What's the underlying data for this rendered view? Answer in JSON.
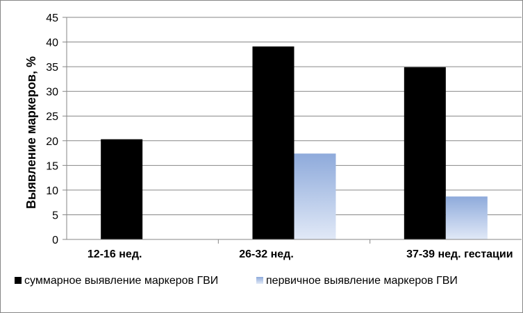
{
  "chart_data": {
    "type": "bar",
    "title": "",
    "xlabel": "",
    "ylabel": "Выявление маркеров, %",
    "ylim": [
      0,
      45
    ],
    "yticks": [
      0,
      5,
      10,
      15,
      20,
      25,
      30,
      35,
      40,
      45
    ],
    "grid": true,
    "legend_position": "bottom",
    "categories": [
      "12-16 нед.",
      "26-32 нед.",
      "37-39 нед. гестации"
    ],
    "series": [
      {
        "name": "суммарное выявление маркеров ГВИ",
        "color": "#000000",
        "values": [
          20.3,
          39.1,
          34.9
        ]
      },
      {
        "name": "первичное выявление маркеров ГВИ",
        "color": "#8eaadb",
        "values": [
          0,
          17.4,
          8.7
        ]
      }
    ]
  }
}
